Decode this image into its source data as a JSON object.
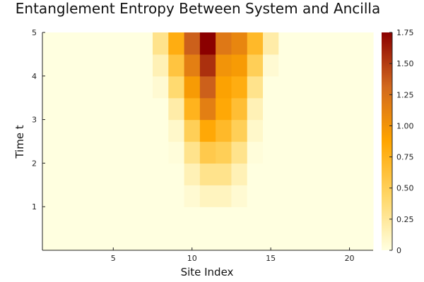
{
  "chart_data": {
    "type": "heatmap",
    "title": "Entanglement Entropy Between System and Ancilla",
    "xlabel": "Site Index",
    "ylabel": "Time t",
    "xlim": [
      0.5,
      21.5
    ],
    "ylim": [
      0,
      5
    ],
    "x_ticks": [
      5,
      10,
      15,
      20
    ],
    "y_ticks": [
      1,
      2,
      3,
      4,
      5
    ],
    "colorbar": {
      "min": 0,
      "max": 1.75,
      "ticks": [
        0,
        0.25,
        0.5,
        0.75,
        1.0,
        1.25,
        1.5,
        1.75
      ],
      "tick_labels": [
        "0",
        "0.25",
        "0.50",
        "0.75",
        "1.00",
        "1.25",
        "1.50",
        "1.75"
      ],
      "colormap": [
        "#FFFFE0",
        "#FFD666",
        "#FFA500",
        "#D2691E",
        "#8B0000"
      ]
    },
    "x_sites": [
      1,
      2,
      3,
      4,
      5,
      6,
      7,
      8,
      9,
      10,
      11,
      12,
      13,
      14,
      15,
      16,
      17,
      18,
      19,
      20,
      21
    ],
    "y_times": [
      0.25,
      0.75,
      1.25,
      1.75,
      2.25,
      2.75,
      3.25,
      3.75,
      4.25,
      4.75
    ],
    "z": [
      [
        0,
        0,
        0,
        0,
        0,
        0,
        0,
        0,
        0,
        0,
        0,
        0,
        0,
        0,
        0,
        0,
        0,
        0,
        0,
        0,
        0
      ],
      [
        0,
        0,
        0,
        0,
        0,
        0,
        0,
        0,
        0,
        0,
        0,
        0,
        0,
        0,
        0,
        0,
        0,
        0,
        0,
        0,
        0
      ],
      [
        0,
        0,
        0,
        0,
        0,
        0,
        0,
        0,
        0,
        0.05,
        0.12,
        0.12,
        0.05,
        0,
        0,
        0,
        0,
        0,
        0,
        0,
        0
      ],
      [
        0,
        0,
        0,
        0,
        0,
        0,
        0,
        0,
        0,
        0.15,
        0.3,
        0.3,
        0.15,
        0,
        0,
        0,
        0,
        0,
        0,
        0,
        0
      ],
      [
        0,
        0,
        0,
        0,
        0,
        0,
        0,
        0,
        0.02,
        0.3,
        0.55,
        0.5,
        0.3,
        0.02,
        0,
        0,
        0,
        0,
        0,
        0,
        0
      ],
      [
        0,
        0,
        0,
        0,
        0,
        0,
        0,
        0,
        0.08,
        0.5,
        0.85,
        0.7,
        0.5,
        0.08,
        0,
        0,
        0,
        0,
        0,
        0,
        0
      ],
      [
        0,
        0,
        0,
        0,
        0,
        0,
        0,
        0,
        0.2,
        0.75,
        1.15,
        0.85,
        0.65,
        0.15,
        0,
        0,
        0,
        0,
        0,
        0,
        0
      ],
      [
        0,
        0,
        0,
        0,
        0,
        0,
        0,
        0.05,
        0.4,
        0.95,
        1.35,
        0.9,
        0.8,
        0.3,
        0,
        0,
        0,
        0,
        0,
        0,
        0
      ],
      [
        0,
        0,
        0,
        0,
        0,
        0,
        0,
        0.15,
        0.6,
        1.15,
        1.55,
        1.0,
        0.95,
        0.5,
        0.05,
        0,
        0,
        0,
        0,
        0,
        0
      ],
      [
        0,
        0,
        0,
        0,
        0,
        0,
        0,
        0.3,
        0.8,
        1.35,
        1.75,
        1.2,
        1.1,
        0.7,
        0.2,
        0,
        0,
        0,
        0,
        0,
        0
      ]
    ]
  }
}
